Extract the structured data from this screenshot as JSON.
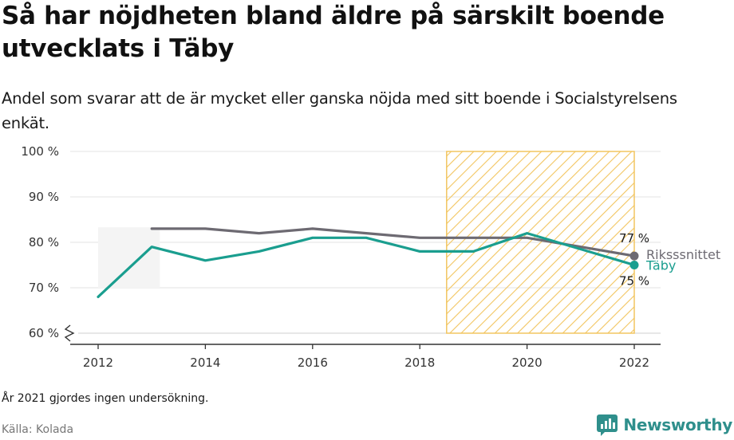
{
  "title": "Så har nöjdheten bland äldre på särskilt boende utvecklats i Täby",
  "subtitle": "Andel som svarar att de är mycket eller ganska nöjda med sitt boende i Socialstyrelsens enkät.",
  "note": "År 2021 gjordes ingen undersökning.",
  "source": "Källa: Kolada",
  "brand": "Newsworthy",
  "colors": {
    "taby": "#1a9e8f",
    "riks": "#6d6a72",
    "hatch": "#f2c560",
    "brand": "#2f8f8c"
  },
  "chart_data": {
    "type": "line",
    "x": [
      2012,
      2013,
      2014,
      2015,
      2016,
      2017,
      2018,
      2019,
      2020,
      2022
    ],
    "xticks": [
      "2012",
      "2014",
      "2016",
      "2018",
      "2020",
      "2022"
    ],
    "yticks": [
      "100 %",
      "90 %",
      "80 %",
      "70 %",
      "60 %"
    ],
    "ylim": [
      60,
      100
    ],
    "series": [
      {
        "name": "Riksssnittet",
        "values": [
          null,
          83,
          83,
          82,
          83,
          82,
          81,
          81,
          81,
          77
        ],
        "end_label": "77 %"
      },
      {
        "name": "Täby",
        "values": [
          68,
          79,
          76,
          78,
          81,
          81,
          78,
          78,
          82,
          75
        ],
        "end_label": "75 %"
      }
    ],
    "highlight_range": [
      2018.5,
      2022
    ],
    "grid": true
  }
}
